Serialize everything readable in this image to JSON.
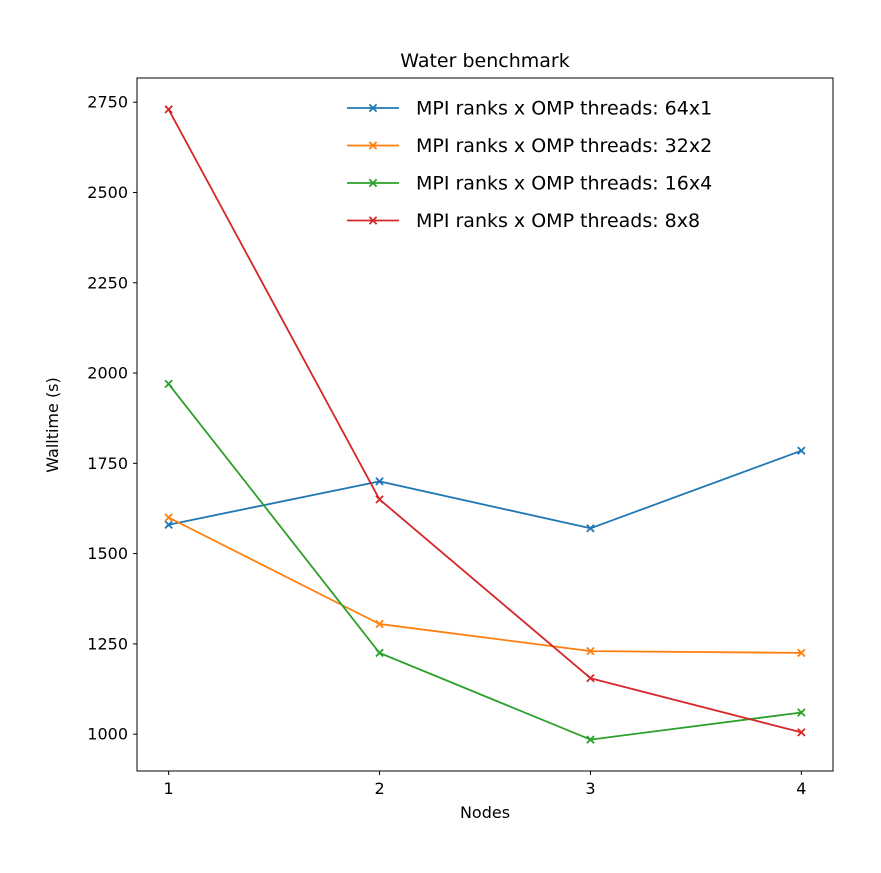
{
  "chart_data": {
    "type": "line",
    "title": "Water benchmark",
    "xlabel": "Nodes",
    "ylabel": "Walltime (s)",
    "marker": "x",
    "grid": false,
    "legend_position": "upper center",
    "x": [
      1,
      2,
      3,
      4
    ],
    "xticks": [
      1,
      2,
      3,
      4
    ],
    "yticks": [
      1000,
      1250,
      1500,
      1750,
      2000,
      2250,
      2500,
      2750
    ],
    "xlim": [
      0.85,
      4.15
    ],
    "ylim": [
      898,
      2817
    ],
    "series": [
      {
        "name": "MPI ranks x OMP threads: 64x1",
        "color": "#1f77b4",
        "values": [
          1580,
          1700,
          1570,
          1785
        ]
      },
      {
        "name": "MPI ranks x OMP threads: 32x2",
        "color": "#ff7f0e",
        "values": [
          1600,
          1305,
          1230,
          1225
        ]
      },
      {
        "name": "MPI ranks x OMP threads: 16x4",
        "color": "#2ca02c",
        "values": [
          1970,
          1225,
          985,
          1060
        ]
      },
      {
        "name": "MPI ranks x OMP threads: 8x8",
        "color": "#d62728",
        "values": [
          2730,
          1650,
          1155,
          1005
        ]
      }
    ]
  }
}
